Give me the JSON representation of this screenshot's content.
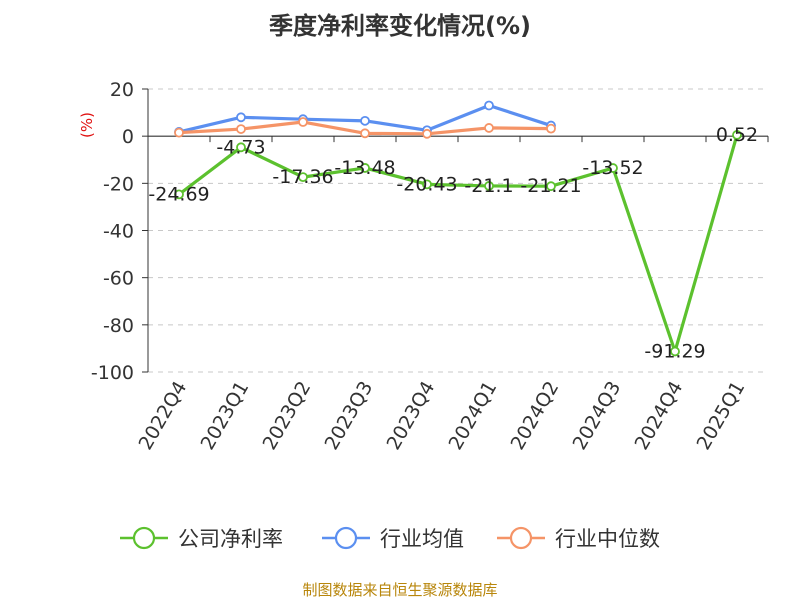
{
  "chart_data": {
    "type": "line",
    "title": "季度净利率变化情况(%)",
    "ylabel": "(%)",
    "xlabel": "",
    "categories": [
      "2022Q4",
      "2023Q1",
      "2023Q2",
      "2023Q3",
      "2023Q4",
      "2024Q1",
      "2024Q2",
      "2024Q3",
      "2024Q4",
      "2025Q1"
    ],
    "ylim": [
      -100,
      20
    ],
    "yticks": [
      20,
      0,
      -20,
      -40,
      -60,
      -80,
      -100
    ],
    "grid": true,
    "legend_position": "bottom",
    "series": [
      {
        "name": "公司净利率",
        "color": "#5cc12e",
        "values": [
          -24.69,
          -4.73,
          -17.36,
          -13.48,
          -20.43,
          -21.1,
          -21.21,
          -13.52,
          -91.29,
          0.52
        ],
        "data_labels": [
          "-24.69",
          "-4.73",
          "-17.36",
          "-13.48",
          "-20.43",
          "-21.1",
          "-21.21",
          "-13.52",
          "-91.29",
          "0.52"
        ]
      },
      {
        "name": "行业均值",
        "color": "#5b8ff0",
        "values": [
          1.8,
          8.0,
          7.2,
          6.5,
          2.5,
          13.0,
          4.5,
          null,
          null,
          null
        ]
      },
      {
        "name": "行业中位数",
        "color": "#f59467",
        "values": [
          1.5,
          3.0,
          6.0,
          1.2,
          1.0,
          3.5,
          3.2,
          null,
          null,
          null
        ]
      }
    ],
    "source": "制图数据来自恒生聚源数据库"
  }
}
